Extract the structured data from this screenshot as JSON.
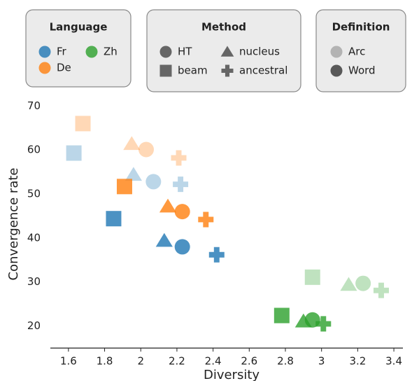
{
  "chart_data": {
    "type": "scatter",
    "x_label": "Diversity",
    "y_label": "Convergence rate",
    "xlim": [
      1.5,
      3.45
    ],
    "xticks": [
      1.6,
      1.8,
      2.0,
      2.2,
      2.4,
      2.6,
      2.8,
      3.0,
      3.2,
      3.4
    ],
    "ylim": [
      15,
      71
    ],
    "yticks": [
      20,
      30,
      40,
      50,
      60,
      70
    ],
    "legends": [
      {
        "title": "Language",
        "entries": [
          {
            "name": "Fr",
            "color": "#1f77b4"
          },
          {
            "name": "Zh",
            "color": "#2ca02c"
          },
          {
            "name": "De",
            "color": "#ff7f0e"
          }
        ]
      },
      {
        "title": "Method",
        "entries": [
          {
            "name": "HT",
            "marker": "circle"
          },
          {
            "name": "nucleus",
            "marker": "triangle"
          },
          {
            "name": "beam",
            "marker": "square"
          },
          {
            "name": "ancestral",
            "marker": "plus"
          }
        ]
      },
      {
        "title": "Definition",
        "entries": [
          {
            "name": "Arc",
            "opacity": 0.3
          },
          {
            "name": "Word",
            "opacity": 0.8
          }
        ]
      }
    ],
    "points": [
      {
        "language": "De",
        "method": "beam",
        "definition": "Arc",
        "x": 1.68,
        "y": 66.0
      },
      {
        "language": "Fr",
        "method": "beam",
        "definition": "Arc",
        "x": 1.63,
        "y": 59.3
      },
      {
        "language": "De",
        "method": "nucleus",
        "definition": "Arc",
        "x": 1.95,
        "y": 61.4
      },
      {
        "language": "De",
        "method": "HT",
        "definition": "Arc",
        "x": 2.03,
        "y": 60.1
      },
      {
        "language": "Fr",
        "method": "nucleus",
        "definition": "Arc",
        "x": 1.96,
        "y": 54.4
      },
      {
        "language": "Fr",
        "method": "HT",
        "definition": "Arc",
        "x": 2.07,
        "y": 52.8
      },
      {
        "language": "De",
        "method": "ancestral",
        "definition": "Arc",
        "x": 2.21,
        "y": 58.2
      },
      {
        "language": "Fr",
        "method": "ancestral",
        "definition": "Arc",
        "x": 2.22,
        "y": 52.2
      },
      {
        "language": "Zh",
        "method": "beam",
        "definition": "Arc",
        "x": 2.95,
        "y": 31.1
      },
      {
        "language": "Zh",
        "method": "nucleus",
        "definition": "Arc",
        "x": 3.15,
        "y": 29.4
      },
      {
        "language": "Zh",
        "method": "HT",
        "definition": "Arc",
        "x": 3.23,
        "y": 29.7
      },
      {
        "language": "Zh",
        "method": "ancestral",
        "definition": "Arc",
        "x": 3.33,
        "y": 28.1
      },
      {
        "language": "De",
        "method": "beam",
        "definition": "Word",
        "x": 1.91,
        "y": 51.7
      },
      {
        "language": "Fr",
        "method": "beam",
        "definition": "Word",
        "x": 1.85,
        "y": 44.4
      },
      {
        "language": "De",
        "method": "nucleus",
        "definition": "Word",
        "x": 2.15,
        "y": 47.2
      },
      {
        "language": "De",
        "method": "HT",
        "definition": "Word",
        "x": 2.23,
        "y": 46.0
      },
      {
        "language": "De",
        "method": "ancestral",
        "definition": "Word",
        "x": 2.36,
        "y": 44.2
      },
      {
        "language": "Fr",
        "method": "nucleus",
        "definition": "Word",
        "x": 2.13,
        "y": 39.4
      },
      {
        "language": "Fr",
        "method": "HT",
        "definition": "Word",
        "x": 2.23,
        "y": 38.0
      },
      {
        "language": "Fr",
        "method": "ancestral",
        "definition": "Word",
        "x": 2.42,
        "y": 36.2
      },
      {
        "language": "Zh",
        "method": "beam",
        "definition": "Word",
        "x": 2.78,
        "y": 22.4
      },
      {
        "language": "Zh",
        "method": "nucleus",
        "definition": "Word",
        "x": 2.9,
        "y": 21.1
      },
      {
        "language": "Zh",
        "method": "HT",
        "definition": "Word",
        "x": 2.95,
        "y": 21.4
      },
      {
        "language": "Zh",
        "method": "ancestral",
        "definition": "Word",
        "x": 3.01,
        "y": 20.5
      }
    ]
  }
}
